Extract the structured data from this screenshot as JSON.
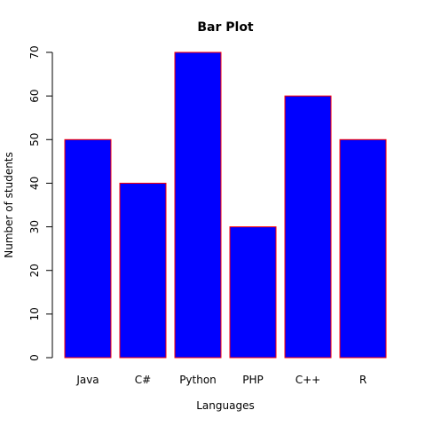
{
  "chart_data": {
    "type": "bar",
    "title": "Bar Plot",
    "xlabel": "Languages",
    "ylabel": "Number of students",
    "categories": [
      "Java",
      "C#",
      "Python",
      "PHP",
      "C++",
      "R"
    ],
    "values": [
      50,
      40,
      70,
      30,
      60,
      50
    ],
    "ylim": [
      0,
      70
    ],
    "yticks": [
      "0",
      "10",
      "20",
      "30",
      "40",
      "50",
      "60",
      "70"
    ],
    "bar_fill": "#0000ff",
    "bar_border": "#ff0000",
    "grid": false
  }
}
